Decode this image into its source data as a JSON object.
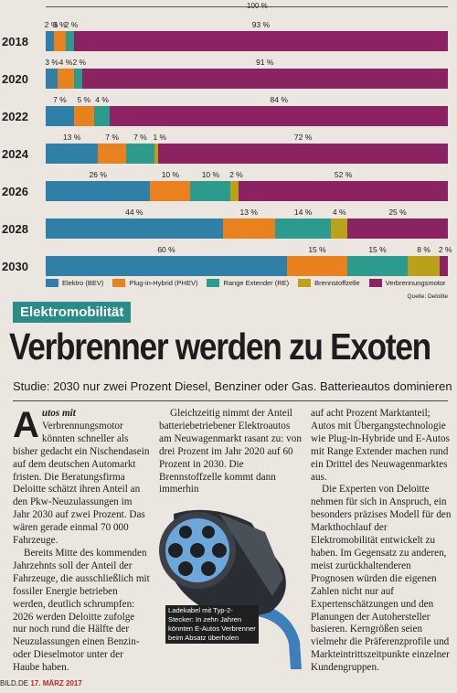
{
  "chart_data": {
    "type": "bar",
    "stacked": true,
    "orientation": "horizontal",
    "top_label": "100 %",
    "categories": [
      "2018",
      "2020",
      "2022",
      "2024",
      "2026",
      "2028",
      "2030"
    ],
    "series": [
      {
        "name": "Elektro (BEV)",
        "color": "#2f7fa6",
        "values": [
          2,
          3,
          7,
          13,
          26,
          44,
          60
        ],
        "labels": [
          "2 %",
          "3 %",
          "7 %",
          "13 %",
          "26 %",
          "44 %",
          "60 %"
        ]
      },
      {
        "name": "Plug-in-Hybrid (PHEV)",
        "color": "#e9811f",
        "values": [
          3,
          4,
          5,
          7,
          10,
          13,
          15
        ],
        "labels": [
          "3 %",
          "4 %",
          "5 %",
          "7 %",
          "10 %",
          "13 %",
          "15 %"
        ]
      },
      {
        "name": "Range Extender (RE)",
        "color": "#2c9b8d",
        "values": [
          2,
          2,
          4,
          7,
          10,
          14,
          15
        ],
        "labels": [
          "2 %",
          "2 %",
          "4 %",
          "7 %",
          "10 %",
          "14 %",
          "15 %"
        ]
      },
      {
        "name": "Brennstoffzelle",
        "color": "#b9a21a",
        "values": [
          0,
          0,
          0,
          1,
          2,
          4,
          8
        ],
        "labels": [
          "",
          "",
          "",
          "1 %",
          "2 %",
          "4 %",
          "8 %"
        ]
      },
      {
        "name": "Verbrennungsmotor",
        "color": "#8b2262",
        "values": [
          93,
          91,
          84,
          72,
          52,
          25,
          2
        ],
        "labels": [
          "93 %",
          "91 %",
          "84 %",
          "72 %",
          "52 %",
          "25 %",
          "2 %"
        ]
      }
    ],
    "legend_position": "bottom",
    "source": "Quelle: Deloitte"
  },
  "article": {
    "tag": "Elektromobilität",
    "headline": "Verbrenner werden zu Exoten",
    "subline": "Studie: 2030 nur zwei Prozent Diesel, Benziner oder Gas. Batterieautos dominieren",
    "dropcap": "A",
    "lead": "utos mit",
    "col1_p1": " Verbrennungsmotor könnten schneller als bisher gedacht ein Nischendasein auf dem deutschen Automarkt fristen. Die Beratungsfirma Deloitte schätzt ihren Anteil an den Pkw-Neuzulassungen im Jahr 2030 auf zwei Prozent. Das wären gerade einmal 70 000 Fahrzeuge.",
    "col1_p2": "Bereits Mitte des kommenden Jahrzehnts soll der Anteil der Fahrzeuge, die ausschließlich mit fossiler Energie betrieben werden, deutlich schrumpfen: 2026 werden Deloitte zufolge nur noch rund die Hälfte der Neuzulassungen einen Benzin- oder Dieselmotor unter der Haube haben.",
    "col2_p1": "Gleichzeitig nimmt der Anteil batteriebetriebener Elektroautos am Neuwagenmarkt rasant zu: von drei Prozent im Jahr 2020 auf 60 Prozent in 2030. Die Brennstoffzelle kommt dann immerhin",
    "col3_p1": "auf acht Prozent Marktanteil; Autos mit Übergangstechnologie wie Plug-in-Hybride und E-Autos mit Range Extender machen rund ein Drittel des Neuwagenmarktes aus.",
    "col3_p2": "Die Experten von Deloitte nehmen für sich in Anspruch, ein besonders präzises Modell für den Markthochlauf der Elektromobilität entwickelt zu haben. Im Gegensatz zu anderen, meist zurückhaltenderen Prognosen würden die eigenen Zahlen nicht nur auf Expertenschätzungen und den Planungen der Autohersteller basieren. Kerngrößen seien vielmehr die Präferenzprofile und Markteintrittszeitpunkte einzelner Kundengruppen.",
    "caption": "Ladekabel mit Typ-2-Stecker: In zehn Jahren könnten E-Autos Verbrenner beim Absatz überholen"
  },
  "footer": {
    "site": "BILD.DE",
    "date": "17. MÄRZ 2017"
  }
}
